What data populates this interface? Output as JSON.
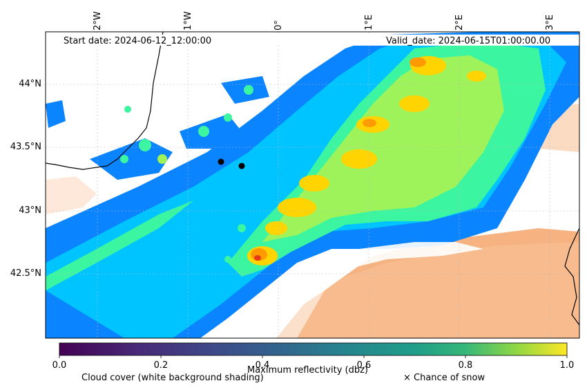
{
  "header": {
    "start_date": "Start date: 2024-06-12_12:00:00",
    "valid_date": "Valid_date: 2024-06-15T01:00:00.00"
  },
  "axes": {
    "lon_labels": [
      "2°W",
      "1°W",
      "0°",
      "1°E",
      "2°E",
      "3°E"
    ],
    "lat_labels": [
      "44°N",
      "43.5°N",
      "43°N",
      "42.5°N"
    ]
  },
  "colorbar": {
    "tick_labels": [
      "0.0",
      "0.2",
      "0.4",
      "0.6",
      "0.8",
      "1.0"
    ],
    "label": "Maximum reflectivity (dbz)",
    "colormap": "viridis"
  },
  "legend": {
    "cloud_cover": "Cloud cover (white background shading)",
    "snow": "× Chance of snow"
  },
  "colors": {
    "reflectivity_low": "#0a84ff",
    "reflectivity_mid": "#00c4ff",
    "reflectivity_green": "#3cf5a0",
    "reflectivity_yellow": "#ffd400",
    "reflectivity_orange": "#ff9a00",
    "reflectivity_red": "#e83a1a",
    "cloud_shading": "#f5a56a",
    "coastline": "#000000"
  },
  "markers": {
    "points": 2
  }
}
